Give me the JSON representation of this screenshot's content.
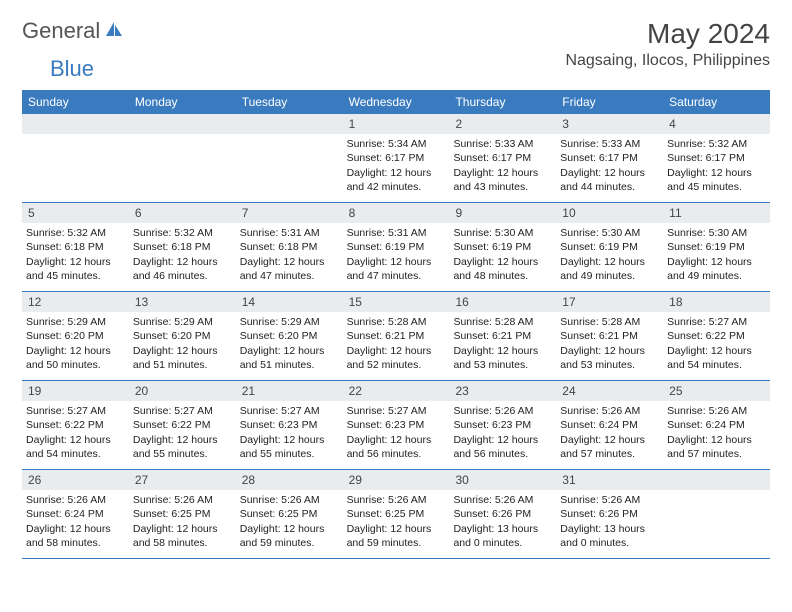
{
  "logo": {
    "text1": "General",
    "text2": "Blue"
  },
  "title": "May 2024",
  "location": "Nagsaing, Ilocos, Philippines",
  "colors": {
    "header_bg": "#3a7bbf",
    "header_text": "#ffffff",
    "daynum_bg": "#e8ecef",
    "border": "#3a7bbf",
    "text": "#222222"
  },
  "day_names": [
    "Sunday",
    "Monday",
    "Tuesday",
    "Wednesday",
    "Thursday",
    "Friday",
    "Saturday"
  ],
  "weeks": [
    [
      {
        "num": "",
        "lines": []
      },
      {
        "num": "",
        "lines": []
      },
      {
        "num": "",
        "lines": []
      },
      {
        "num": "1",
        "lines": [
          "Sunrise: 5:34 AM",
          "Sunset: 6:17 PM",
          "Daylight: 12 hours and 42 minutes."
        ]
      },
      {
        "num": "2",
        "lines": [
          "Sunrise: 5:33 AM",
          "Sunset: 6:17 PM",
          "Daylight: 12 hours and 43 minutes."
        ]
      },
      {
        "num": "3",
        "lines": [
          "Sunrise: 5:33 AM",
          "Sunset: 6:17 PM",
          "Daylight: 12 hours and 44 minutes."
        ]
      },
      {
        "num": "4",
        "lines": [
          "Sunrise: 5:32 AM",
          "Sunset: 6:17 PM",
          "Daylight: 12 hours and 45 minutes."
        ]
      }
    ],
    [
      {
        "num": "5",
        "lines": [
          "Sunrise: 5:32 AM",
          "Sunset: 6:18 PM",
          "Daylight: 12 hours and 45 minutes."
        ]
      },
      {
        "num": "6",
        "lines": [
          "Sunrise: 5:32 AM",
          "Sunset: 6:18 PM",
          "Daylight: 12 hours and 46 minutes."
        ]
      },
      {
        "num": "7",
        "lines": [
          "Sunrise: 5:31 AM",
          "Sunset: 6:18 PM",
          "Daylight: 12 hours and 47 minutes."
        ]
      },
      {
        "num": "8",
        "lines": [
          "Sunrise: 5:31 AM",
          "Sunset: 6:19 PM",
          "Daylight: 12 hours and 47 minutes."
        ]
      },
      {
        "num": "9",
        "lines": [
          "Sunrise: 5:30 AM",
          "Sunset: 6:19 PM",
          "Daylight: 12 hours and 48 minutes."
        ]
      },
      {
        "num": "10",
        "lines": [
          "Sunrise: 5:30 AM",
          "Sunset: 6:19 PM",
          "Daylight: 12 hours and 49 minutes."
        ]
      },
      {
        "num": "11",
        "lines": [
          "Sunrise: 5:30 AM",
          "Sunset: 6:19 PM",
          "Daylight: 12 hours and 49 minutes."
        ]
      }
    ],
    [
      {
        "num": "12",
        "lines": [
          "Sunrise: 5:29 AM",
          "Sunset: 6:20 PM",
          "Daylight: 12 hours and 50 minutes."
        ]
      },
      {
        "num": "13",
        "lines": [
          "Sunrise: 5:29 AM",
          "Sunset: 6:20 PM",
          "Daylight: 12 hours and 51 minutes."
        ]
      },
      {
        "num": "14",
        "lines": [
          "Sunrise: 5:29 AM",
          "Sunset: 6:20 PM",
          "Daylight: 12 hours and 51 minutes."
        ]
      },
      {
        "num": "15",
        "lines": [
          "Sunrise: 5:28 AM",
          "Sunset: 6:21 PM",
          "Daylight: 12 hours and 52 minutes."
        ]
      },
      {
        "num": "16",
        "lines": [
          "Sunrise: 5:28 AM",
          "Sunset: 6:21 PM",
          "Daylight: 12 hours and 53 minutes."
        ]
      },
      {
        "num": "17",
        "lines": [
          "Sunrise: 5:28 AM",
          "Sunset: 6:21 PM",
          "Daylight: 12 hours and 53 minutes."
        ]
      },
      {
        "num": "18",
        "lines": [
          "Sunrise: 5:27 AM",
          "Sunset: 6:22 PM",
          "Daylight: 12 hours and 54 minutes."
        ]
      }
    ],
    [
      {
        "num": "19",
        "lines": [
          "Sunrise: 5:27 AM",
          "Sunset: 6:22 PM",
          "Daylight: 12 hours and 54 minutes."
        ]
      },
      {
        "num": "20",
        "lines": [
          "Sunrise: 5:27 AM",
          "Sunset: 6:22 PM",
          "Daylight: 12 hours and 55 minutes."
        ]
      },
      {
        "num": "21",
        "lines": [
          "Sunrise: 5:27 AM",
          "Sunset: 6:23 PM",
          "Daylight: 12 hours and 55 minutes."
        ]
      },
      {
        "num": "22",
        "lines": [
          "Sunrise: 5:27 AM",
          "Sunset: 6:23 PM",
          "Daylight: 12 hours and 56 minutes."
        ]
      },
      {
        "num": "23",
        "lines": [
          "Sunrise: 5:26 AM",
          "Sunset: 6:23 PM",
          "Daylight: 12 hours and 56 minutes."
        ]
      },
      {
        "num": "24",
        "lines": [
          "Sunrise: 5:26 AM",
          "Sunset: 6:24 PM",
          "Daylight: 12 hours and 57 minutes."
        ]
      },
      {
        "num": "25",
        "lines": [
          "Sunrise: 5:26 AM",
          "Sunset: 6:24 PM",
          "Daylight: 12 hours and 57 minutes."
        ]
      }
    ],
    [
      {
        "num": "26",
        "lines": [
          "Sunrise: 5:26 AM",
          "Sunset: 6:24 PM",
          "Daylight: 12 hours and 58 minutes."
        ]
      },
      {
        "num": "27",
        "lines": [
          "Sunrise: 5:26 AM",
          "Sunset: 6:25 PM",
          "Daylight: 12 hours and 58 minutes."
        ]
      },
      {
        "num": "28",
        "lines": [
          "Sunrise: 5:26 AM",
          "Sunset: 6:25 PM",
          "Daylight: 12 hours and 59 minutes."
        ]
      },
      {
        "num": "29",
        "lines": [
          "Sunrise: 5:26 AM",
          "Sunset: 6:25 PM",
          "Daylight: 12 hours and 59 minutes."
        ]
      },
      {
        "num": "30",
        "lines": [
          "Sunrise: 5:26 AM",
          "Sunset: 6:26 PM",
          "Daylight: 13 hours and 0 minutes."
        ]
      },
      {
        "num": "31",
        "lines": [
          "Sunrise: 5:26 AM",
          "Sunset: 6:26 PM",
          "Daylight: 13 hours and 0 minutes."
        ]
      },
      {
        "num": "",
        "lines": []
      }
    ]
  ]
}
